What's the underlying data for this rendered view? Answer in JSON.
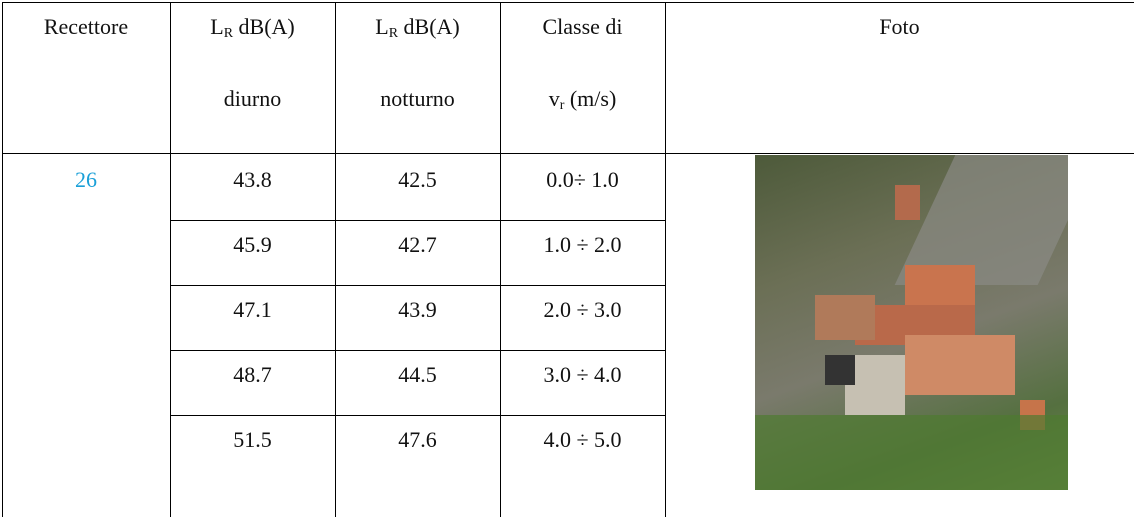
{
  "table": {
    "header": [
      {
        "text": "Recettore"
      },
      {
        "main": "L",
        "sub": "R",
        "rest": "dB(A)",
        "second": "diurno"
      },
      {
        "main": "L",
        "sub": "R",
        "rest": "dB(A)",
        "second": "notturno"
      },
      {
        "first": "Classe di",
        "main": "v",
        "sub": "r",
        "rest": "(m/s)"
      },
      {
        "text": "Foto"
      }
    ],
    "receptor": "26",
    "rows": [
      [
        "43.8",
        "42.5",
        "0.0÷ 1.0"
      ],
      [
        "45.9",
        "42.7",
        "1.0 ÷ 2.0"
      ],
      [
        "47.1",
        "43.9",
        "2.0 ÷ 3.0"
      ],
      [
        "48.7",
        "44.5",
        "3.0 ÷ 4.0"
      ],
      [
        "51.5",
        "47.6",
        "4.0 ÷ 5.0"
      ]
    ]
  }
}
